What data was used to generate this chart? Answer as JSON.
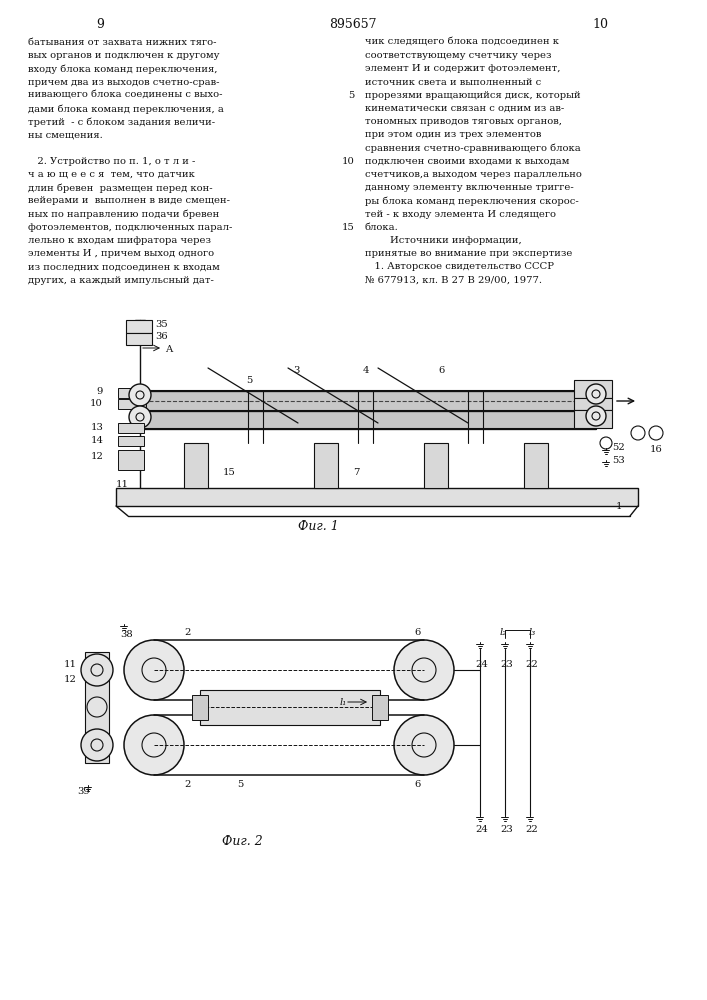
{
  "page_width": 7.07,
  "page_height": 10.0,
  "bg_color": "#ffffff",
  "header_page_left": "9",
  "header_patent": "895657",
  "header_page_right": "10",
  "col_left_lines": [
    "батывания от захвата нижних тяго-",
    "вых органов и подключен к другому",
    "входу блока команд переключения,",
    "причем два из выходов счетно-срав-",
    "нивающего блока соединены с выхо-",
    "дами блока команд переключения, а",
    "третий  - с блоком задания величи-",
    "ны смещения.",
    "",
    "   2. Устройство по п. 1, о т л и -",
    "ч а ю щ е е с я  тем, что датчик",
    "длин бревен  размещен перед кон-",
    "вейерами и  выполнен в виде смещен-",
    "ных по направлению подачи бревен",
    "фотоэлементов, подключенных парал-",
    "лельно к входам шифратора через",
    "элементы И , причем выход одного",
    "из последних подсоединен к входам",
    "других, а каждый импульсный дат-"
  ],
  "col_right_lines": [
    "чик следящего блока подсоединен к",
    "соответствующему счетчику через",
    "элемент И и содержит фотоэлемент,",
    "источник света и выполненный с",
    "прорезями вращающийся диск, который",
    "кинематически связан с одним из ав-",
    "тономных приводов тяговых органов,",
    "при этом один из трех элементов",
    "сравнения счетно-сравнивающего блока",
    "подключен своими входами к выходам",
    "счетчиков,а выходом через параллельно",
    "данному элементу включенные тригге-",
    "ры блока команд переключения скорос-",
    "тей - к входу элемента И следящего",
    "блока.",
    "        Источники информации,",
    "принятые во внимание при экспертизе",
    "   1. Авторское свидетельство СССР",
    "№ 677913, кл. В 27 В 29/00, 1977."
  ],
  "line_numbers": {
    "4": "5",
    "9": "10",
    "14": "15"
  }
}
